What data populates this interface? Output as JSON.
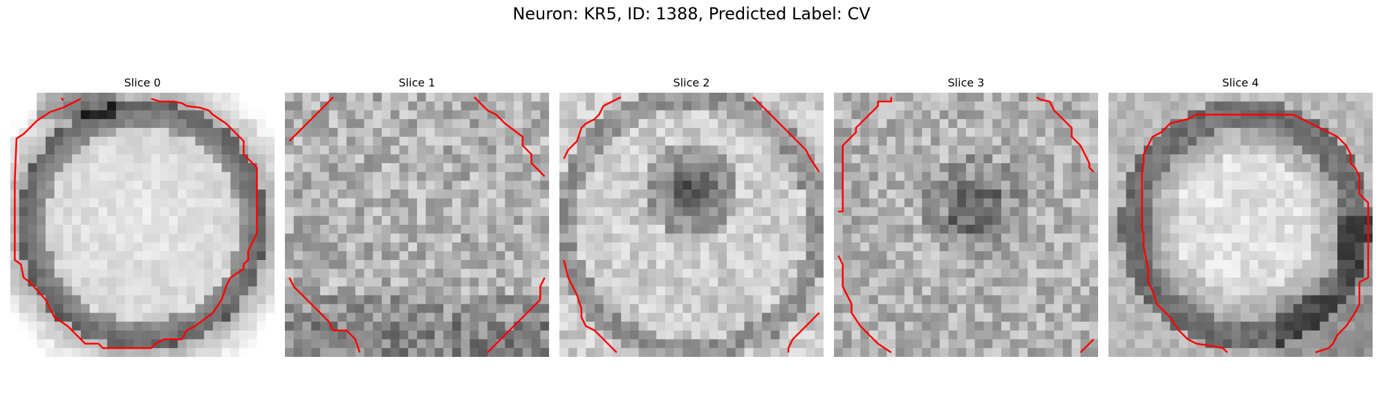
{
  "figure": {
    "title": "Neuron: KR5, ID: 1388, Predicted Label: CV"
  },
  "slices": [
    {
      "title": "Slice 0",
      "pattern": "bright-center-dark-ring"
    },
    {
      "title": "Slice 1",
      "pattern": "noisy-gray"
    },
    {
      "title": "Slice 2",
      "pattern": "bright-ring-dark-center"
    },
    {
      "title": "Slice 3",
      "pattern": "noisy-gray-dark-center"
    },
    {
      "title": "Slice 4",
      "pattern": "dark-ring-bright-center"
    }
  ],
  "colors": {
    "contour": "#ff0000",
    "background": "#ffffff"
  }
}
